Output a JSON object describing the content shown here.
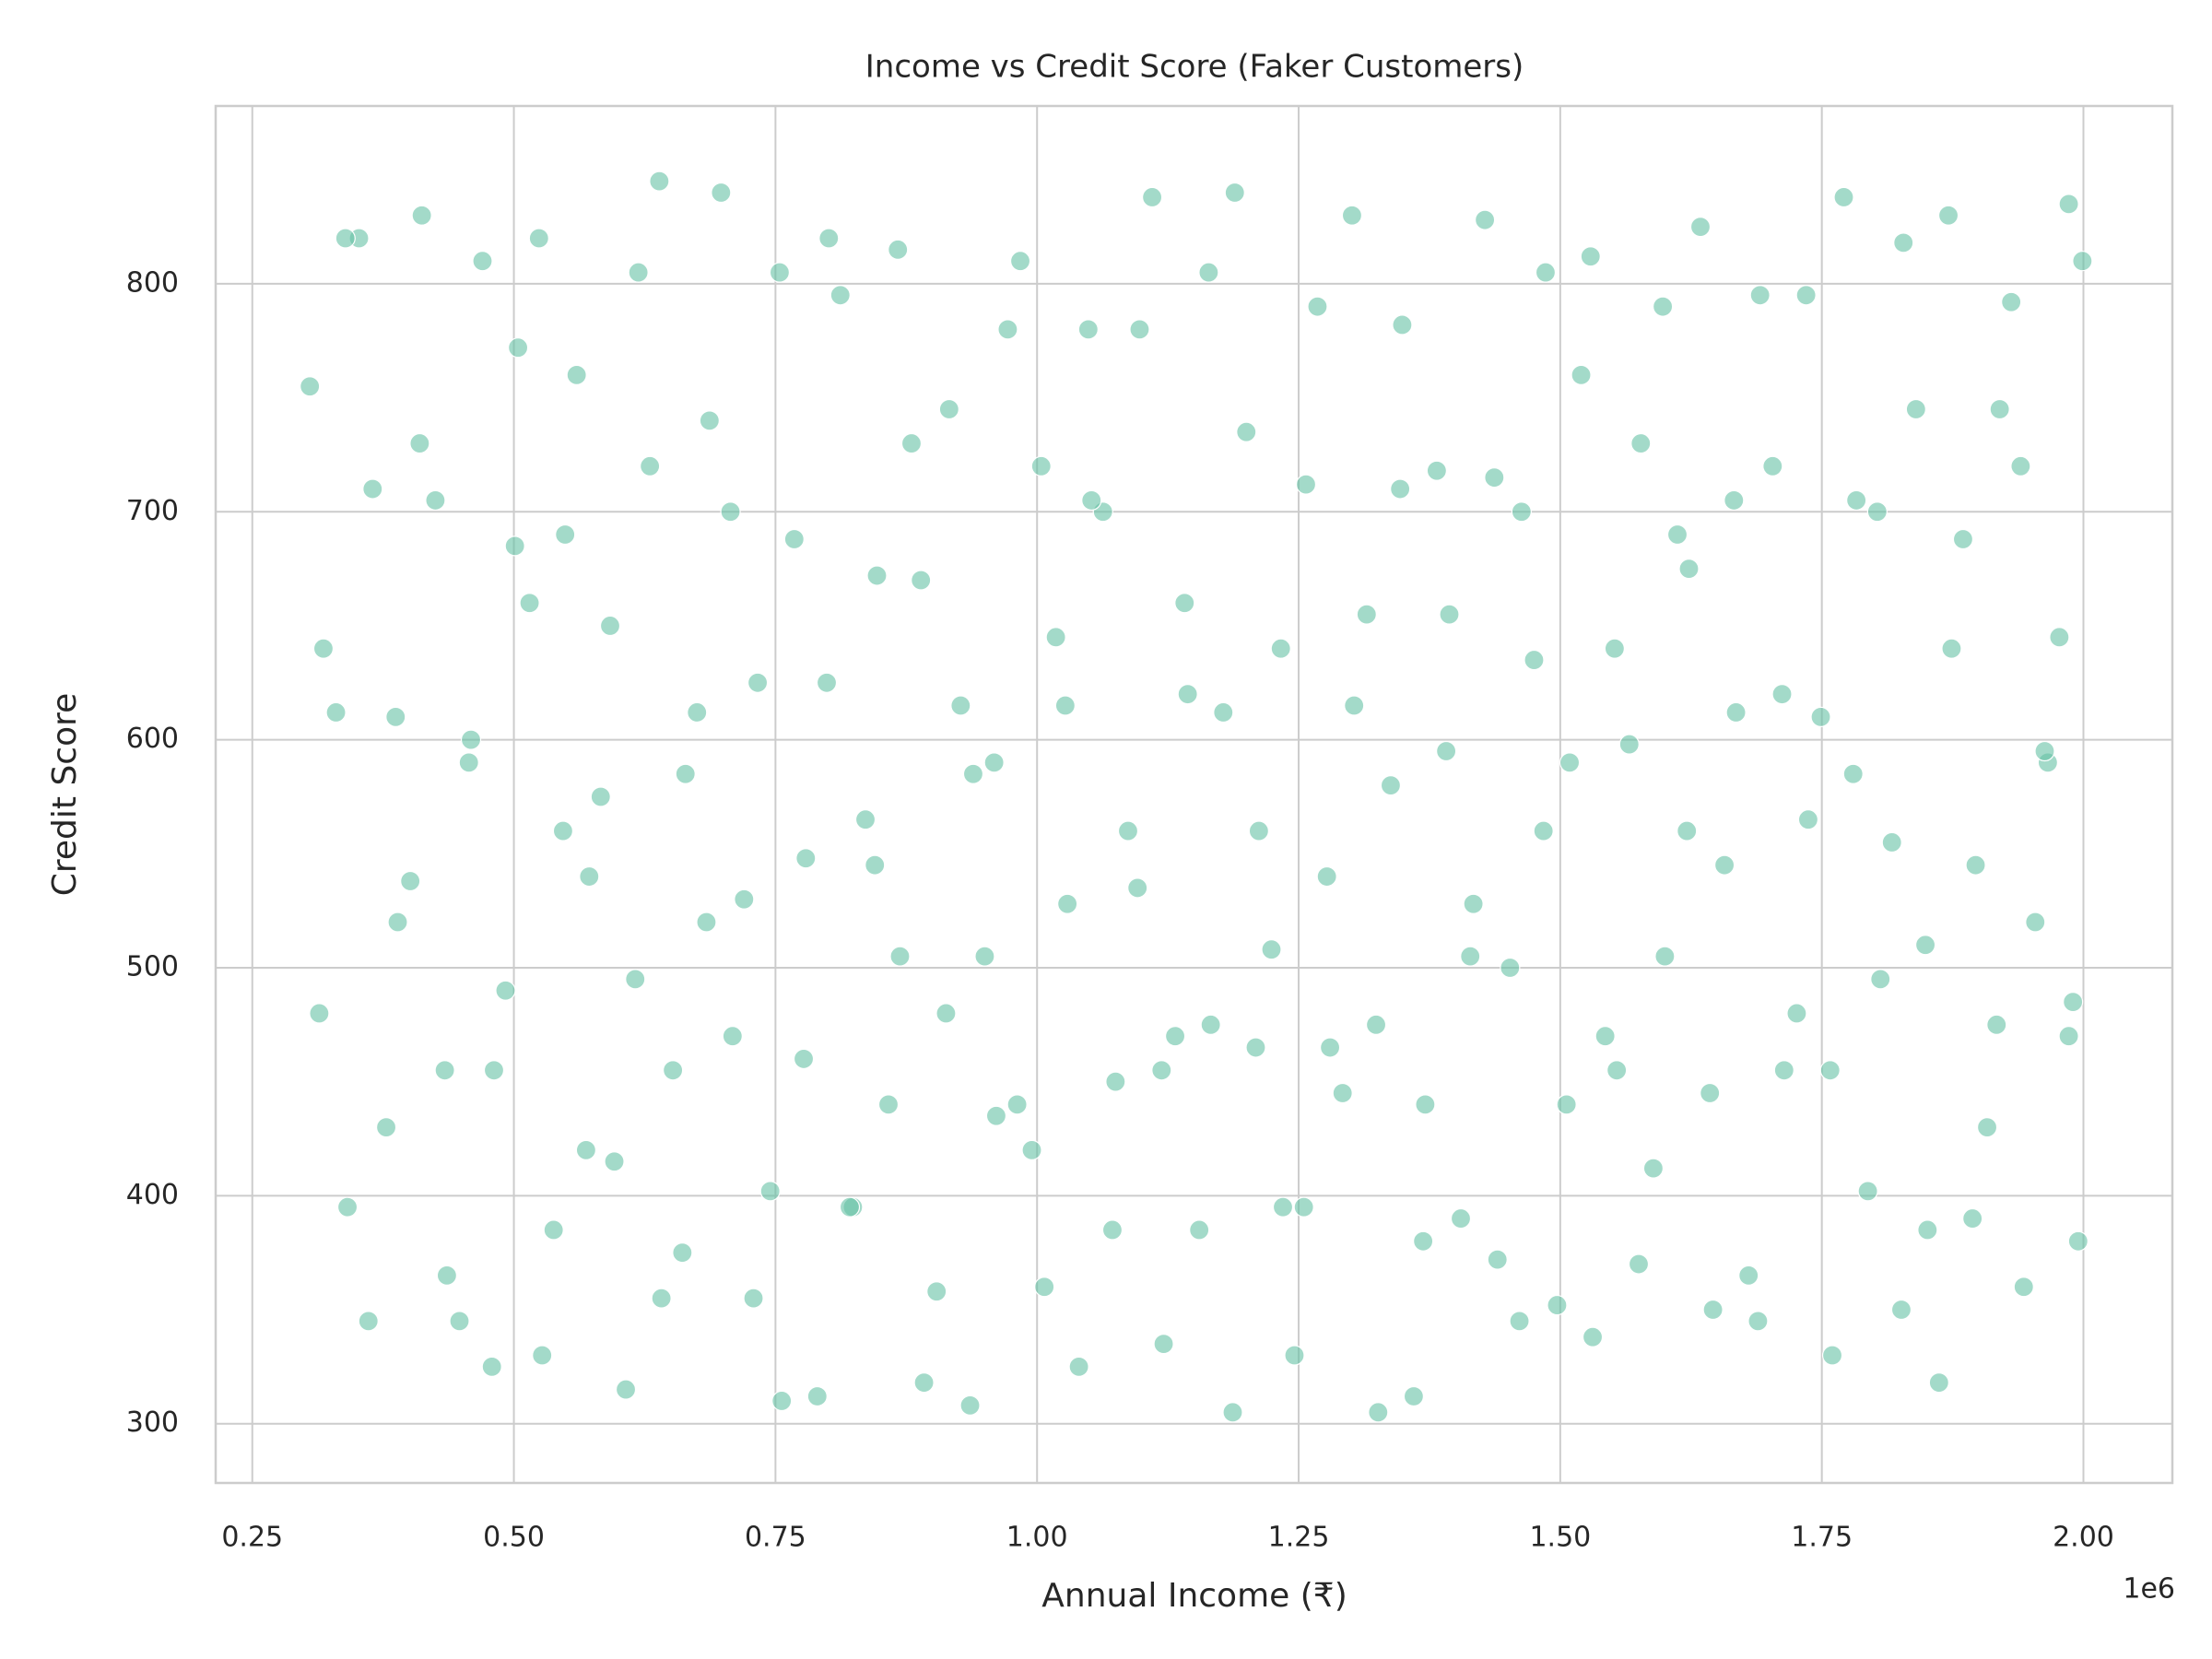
{
  "chart_data": {
    "type": "scatter",
    "title": "Income vs Credit Score (Faker Customers)",
    "x_label": "Annual Income (₹)",
    "y_label": "Credit Score",
    "x_offset_label": "1e6",
    "color": "#66c2a5",
    "grid": true,
    "xlim": [
      215000,
      2085000
    ],
    "ylim": [
      274,
      878
    ],
    "xticks": [
      {
        "value": 250000,
        "label": "0.25"
      },
      {
        "value": 500000,
        "label": "0.50"
      },
      {
        "value": 750000,
        "label": "0.75"
      },
      {
        "value": 1000000,
        "label": "1.00"
      },
      {
        "value": 1250000,
        "label": "1.25"
      },
      {
        "value": 1500000,
        "label": "1.50"
      },
      {
        "value": 1750000,
        "label": "1.75"
      },
      {
        "value": 2000000,
        "label": "2.00"
      }
    ],
    "yticks": [
      300,
      400,
      500,
      600,
      700,
      800
    ],
    "x": [
      305000,
      330000,
      352000,
      378000,
      401000,
      425000,
      448000,
      470000,
      492000,
      515000,
      538000,
      560000,
      583000,
      607000,
      630000,
      652000,
      675000,
      698000,
      720000,
      745000,
      768000,
      790000,
      812000,
      836000,
      858000,
      880000,
      904000,
      927000,
      950000,
      972000,
      995000,
      1018000,
      1040000,
      1063000,
      1087000,
      1110000,
      1132000,
      1155000,
      1178000,
      1200000,
      1224000,
      1246000,
      1268000,
      1292000,
      1315000,
      1338000,
      1360000,
      1382000,
      1405000,
      1428000,
      1452000,
      1475000,
      1497000,
      1520000,
      1543000,
      1566000,
      1589000,
      1612000,
      1634000,
      1657000,
      1680000,
      1703000,
      1726000,
      1749000,
      1771000,
      1794000,
      1817000,
      1840000,
      1862000,
      1885000,
      1908000,
      1931000,
      1954000,
      1977000,
      1995000,
      318000,
      341000,
      365000,
      389000,
      412000,
      436000,
      459000,
      481000,
      504000,
      527000,
      549000,
      572000,
      596000,
      619000,
      641000,
      664000,
      687000,
      709000,
      733000,
      756000,
      779000,
      801000,
      824000,
      847000,
      869000,
      892000,
      916000,
      939000,
      961000,
      984000,
      1007000,
      1029000,
      1052000,
      1075000,
      1098000,
      1121000,
      1144000,
      1166000,
      1189000,
      1212000,
      1235000,
      1257000,
      1280000,
      1303000,
      1326000,
      1349000,
      1371000,
      1394000,
      1417000,
      1440000,
      1463000,
      1486000,
      1509000,
      1531000,
      1554000,
      1577000,
      1600000,
      1623000,
      1646000,
      1668000,
      1691000,
      1714000,
      1737000,
      1760000,
      1783000,
      1806000,
      1828000,
      1851000,
      1874000,
      1897000,
      1920000,
      1943000,
      1966000,
      1986000,
      1999000,
      314000,
      339000,
      361000,
      387000,
      410000,
      434000,
      457000,
      479000,
      501000,
      524000,
      547000,
      569000,
      592000,
      616000,
      639000,
      661000,
      684000,
      707000,
      729000,
      754000,
      777000,
      799000,
      821000,
      845000,
      867000,
      889000,
      913000,
      936000,
      959000,
      981000,
      1004000,
      1027000,
      1049000,
      1072000,
      1096000,
      1119000,
      1141000,
      1164000,
      1187000,
      1209000,
      1233000,
      1255000,
      1277000,
      1301000,
      1324000,
      1347000,
      1369000,
      1391000,
      1414000,
      1437000,
      1461000,
      1484000,
      1506000,
      1529000,
      1552000,
      1575000,
      1598000,
      1621000,
      1643000,
      1666000,
      1689000,
      1712000,
      1735000,
      1758000,
      1780000,
      1803000,
      1826000,
      1849000,
      1871000,
      1894000,
      1917000,
      1940000,
      1963000,
      1986000,
      1990000
    ],
    "values": [
      755,
      612,
      820,
      430,
      538,
      705,
      345,
      810,
      490,
      660,
      385,
      760,
      575,
      315,
      720,
      455,
      612,
      840,
      530,
      402,
      688,
      312,
      795,
      565,
      440,
      730,
      358,
      615,
      505,
      780,
      420,
      645,
      325,
      700,
      560,
      838,
      470,
      385,
      612,
      735,
      508,
      330,
      790,
      445,
      655,
      580,
      312,
      718,
      390,
      828,
      500,
      635,
      352,
      760,
      470,
      598,
      412,
      690,
      825,
      545,
      365,
      720,
      480,
      610,
      838,
      402,
      555,
      745,
      318,
      688,
      430,
      792,
      520,
      645,
      380,
      640,
      395,
      710,
      520,
      830,
      365,
      600,
      455,
      772,
      330,
      690,
      540,
      415,
      805,
      355,
      585,
      740,
      470,
      625,
      310,
      548,
      820,
      395,
      672,
      505,
      318,
      745,
      585,
      435,
      810,
      360,
      528,
      705,
      450,
      780,
      335,
      620,
      475,
      840,
      560,
      395,
      712,
      465,
      615,
      305,
      782,
      440,
      655,
      528,
      372,
      700,
      805,
      590,
      338,
      455,
      730,
      505,
      675,
      350,
      612,
      795,
      455,
      565,
      330,
      705,
      495,
      818,
      385,
      640,
      545,
      745,
      360,
      590,
      470,
      810,
      480,
      820,
      345,
      610,
      730,
      455,
      590,
      325,
      685,
      820,
      560,
      420,
      650,
      495,
      845,
      375,
      520,
      700,
      355,
      805,
      460,
      625,
      395,
      545,
      815,
      670,
      480,
      308,
      590,
      440,
      720,
      615,
      780,
      385,
      535,
      455,
      660,
      805,
      305,
      465,
      640,
      395,
      540,
      830,
      475,
      710,
      380,
      595,
      505,
      715,
      345,
      560,
      440,
      812,
      640,
      370,
      790,
      560,
      445,
      705,
      345,
      620,
      795,
      455,
      585,
      700,
      350,
      510,
      830,
      390,
      475,
      720,
      595,
      835,
      485
    ]
  }
}
